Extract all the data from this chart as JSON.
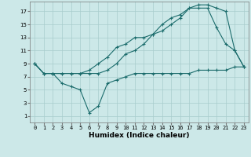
{
  "xlabel": "Humidex (Indice chaleur)",
  "bg_color": "#cce8e8",
  "line_color": "#1a6b6b",
  "xlim": [
    -0.5,
    23.5
  ],
  "ylim": [
    0,
    18.5
  ],
  "xticks": [
    0,
    1,
    2,
    3,
    4,
    5,
    6,
    7,
    8,
    9,
    10,
    11,
    12,
    13,
    14,
    15,
    16,
    17,
    18,
    19,
    20,
    21,
    22,
    23
  ],
  "yticks": [
    1,
    3,
    5,
    7,
    9,
    11,
    13,
    15,
    17
  ],
  "line1_x": [
    0,
    1,
    2,
    3,
    4,
    5,
    6,
    7,
    8,
    9,
    10,
    11,
    12,
    13,
    14,
    15,
    16,
    17,
    18,
    19,
    20,
    21,
    22,
    23
  ],
  "line1_y": [
    9,
    7.5,
    7.5,
    7.5,
    7.5,
    7.5,
    7.5,
    7.5,
    8.0,
    9.0,
    10.5,
    11.0,
    12.0,
    13.5,
    15.0,
    16.0,
    16.5,
    17.5,
    17.5,
    17.5,
    14.5,
    12.0,
    11.0,
    8.5
  ],
  "line2_x": [
    0,
    1,
    2,
    3,
    4,
    5,
    6,
    7,
    8,
    9,
    10,
    11,
    12,
    13,
    14,
    15,
    16,
    17,
    18,
    19,
    20,
    21,
    22,
    23
  ],
  "line2_y": [
    9,
    7.5,
    7.5,
    7.5,
    7.5,
    7.5,
    8.0,
    9.0,
    10.0,
    11.5,
    12.0,
    13.0,
    13.0,
    13.5,
    14.0,
    15.0,
    16.0,
    17.5,
    18.0,
    18.0,
    17.5,
    17.0,
    11.0,
    8.5
  ],
  "line3_x": [
    0,
    1,
    2,
    3,
    4,
    5,
    6,
    7,
    8,
    9,
    10,
    11,
    12,
    13,
    14,
    15,
    16,
    17,
    18,
    19,
    20,
    21,
    22,
    23
  ],
  "line3_y": [
    9,
    7.5,
    7.5,
    6.0,
    5.5,
    5.0,
    1.5,
    2.5,
    6.0,
    6.5,
    7.0,
    7.5,
    7.5,
    7.5,
    7.5,
    7.5,
    7.5,
    7.5,
    8.0,
    8.0,
    8.0,
    8.0,
    8.5,
    8.5
  ]
}
